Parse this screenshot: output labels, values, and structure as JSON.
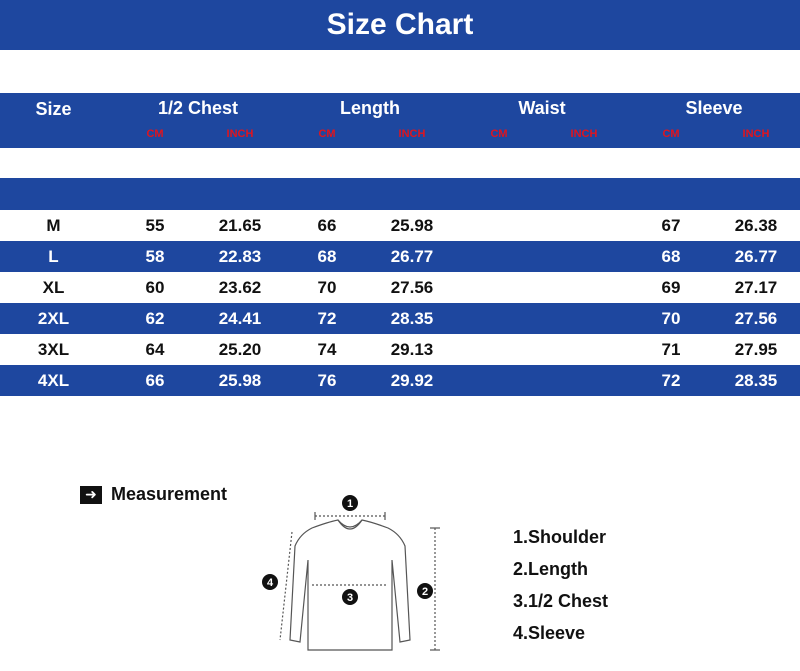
{
  "title": "Size Chart",
  "header": {
    "size": "Size",
    "groups": [
      "1/2 Chest",
      "Length",
      "Waist",
      "Sleeve"
    ],
    "unit_cm": "CM",
    "unit_inch": "INCH"
  },
  "rows": [
    {
      "size": "M",
      "chest_cm": "55",
      "chest_in": "21.65",
      "length_cm": "66",
      "length_in": "25.98",
      "waist_cm": "",
      "waist_in": "",
      "sleeve_cm": "67",
      "sleeve_in": "26.38"
    },
    {
      "size": "L",
      "chest_cm": "58",
      "chest_in": "22.83",
      "length_cm": "68",
      "length_in": "26.77",
      "waist_cm": "",
      "waist_in": "",
      "sleeve_cm": "68",
      "sleeve_in": "26.77"
    },
    {
      "size": "XL",
      "chest_cm": "60",
      "chest_in": "23.62",
      "length_cm": "70",
      "length_in": "27.56",
      "waist_cm": "",
      "waist_in": "",
      "sleeve_cm": "69",
      "sleeve_in": "27.17"
    },
    {
      "size": "2XL",
      "chest_cm": "62",
      "chest_in": "24.41",
      "length_cm": "72",
      "length_in": "28.35",
      "waist_cm": "",
      "waist_in": "",
      "sleeve_cm": "70",
      "sleeve_in": "27.56"
    },
    {
      "size": "3XL",
      "chest_cm": "64",
      "chest_in": "25.20",
      "length_cm": "74",
      "length_in": "29.13",
      "waist_cm": "",
      "waist_in": "",
      "sleeve_cm": "71",
      "sleeve_in": "27.95"
    },
    {
      "size": "4XL",
      "chest_cm": "66",
      "chest_in": "25.98",
      "length_cm": "76",
      "length_in": "29.92",
      "waist_cm": "",
      "waist_in": "",
      "sleeve_cm": "72",
      "sleeve_in": "28.35"
    }
  ],
  "measurement": {
    "title": "Measurement",
    "markers": [
      "1",
      "2",
      "3",
      "4"
    ],
    "legend": [
      "1.Shoulder",
      "2.Length",
      "3.1/2 Chest",
      "4.Sleeve"
    ]
  },
  "colors": {
    "band": "#1e479f",
    "unit": "#e0141e"
  }
}
